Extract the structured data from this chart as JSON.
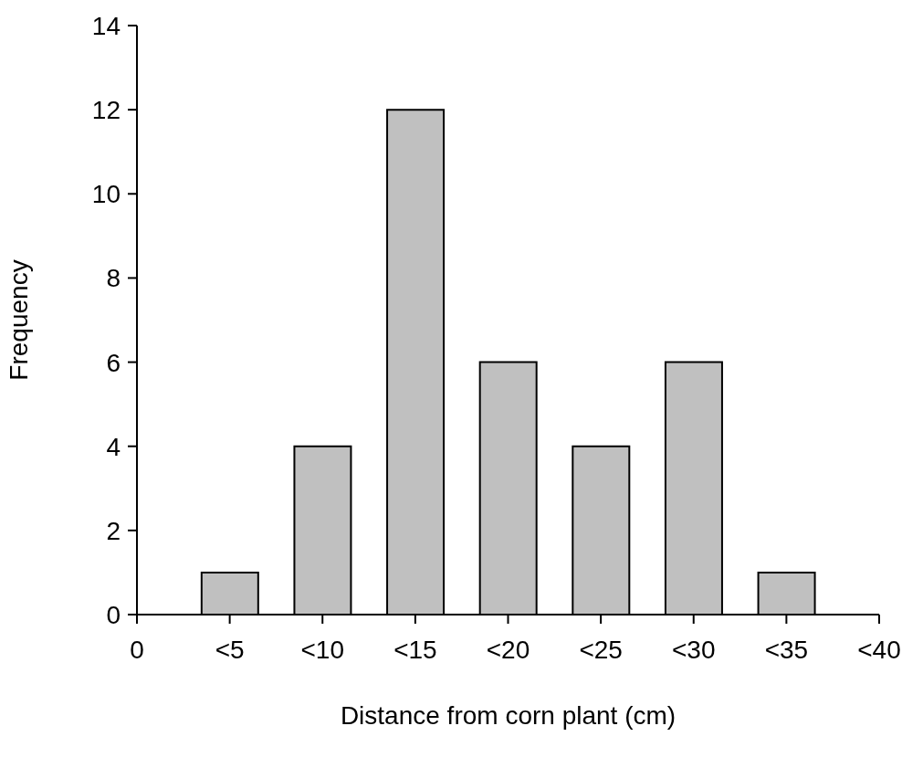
{
  "chart_data": {
    "type": "bar",
    "xlabel": "Distance from corn plant (cm)",
    "ylabel": "Frequency",
    "categories": [
      "0",
      "<5",
      "<10",
      "<15",
      "<20",
      "<25",
      "<30",
      "<35",
      "<40"
    ],
    "values": [
      null,
      1,
      4,
      12,
      6,
      4,
      6,
      1,
      null
    ],
    "color": "#c0c0c0",
    "ylim": [
      0,
      14
    ],
    "yticks": [
      0,
      2,
      4,
      6,
      8,
      10,
      12,
      14
    ],
    "grid": false
  }
}
